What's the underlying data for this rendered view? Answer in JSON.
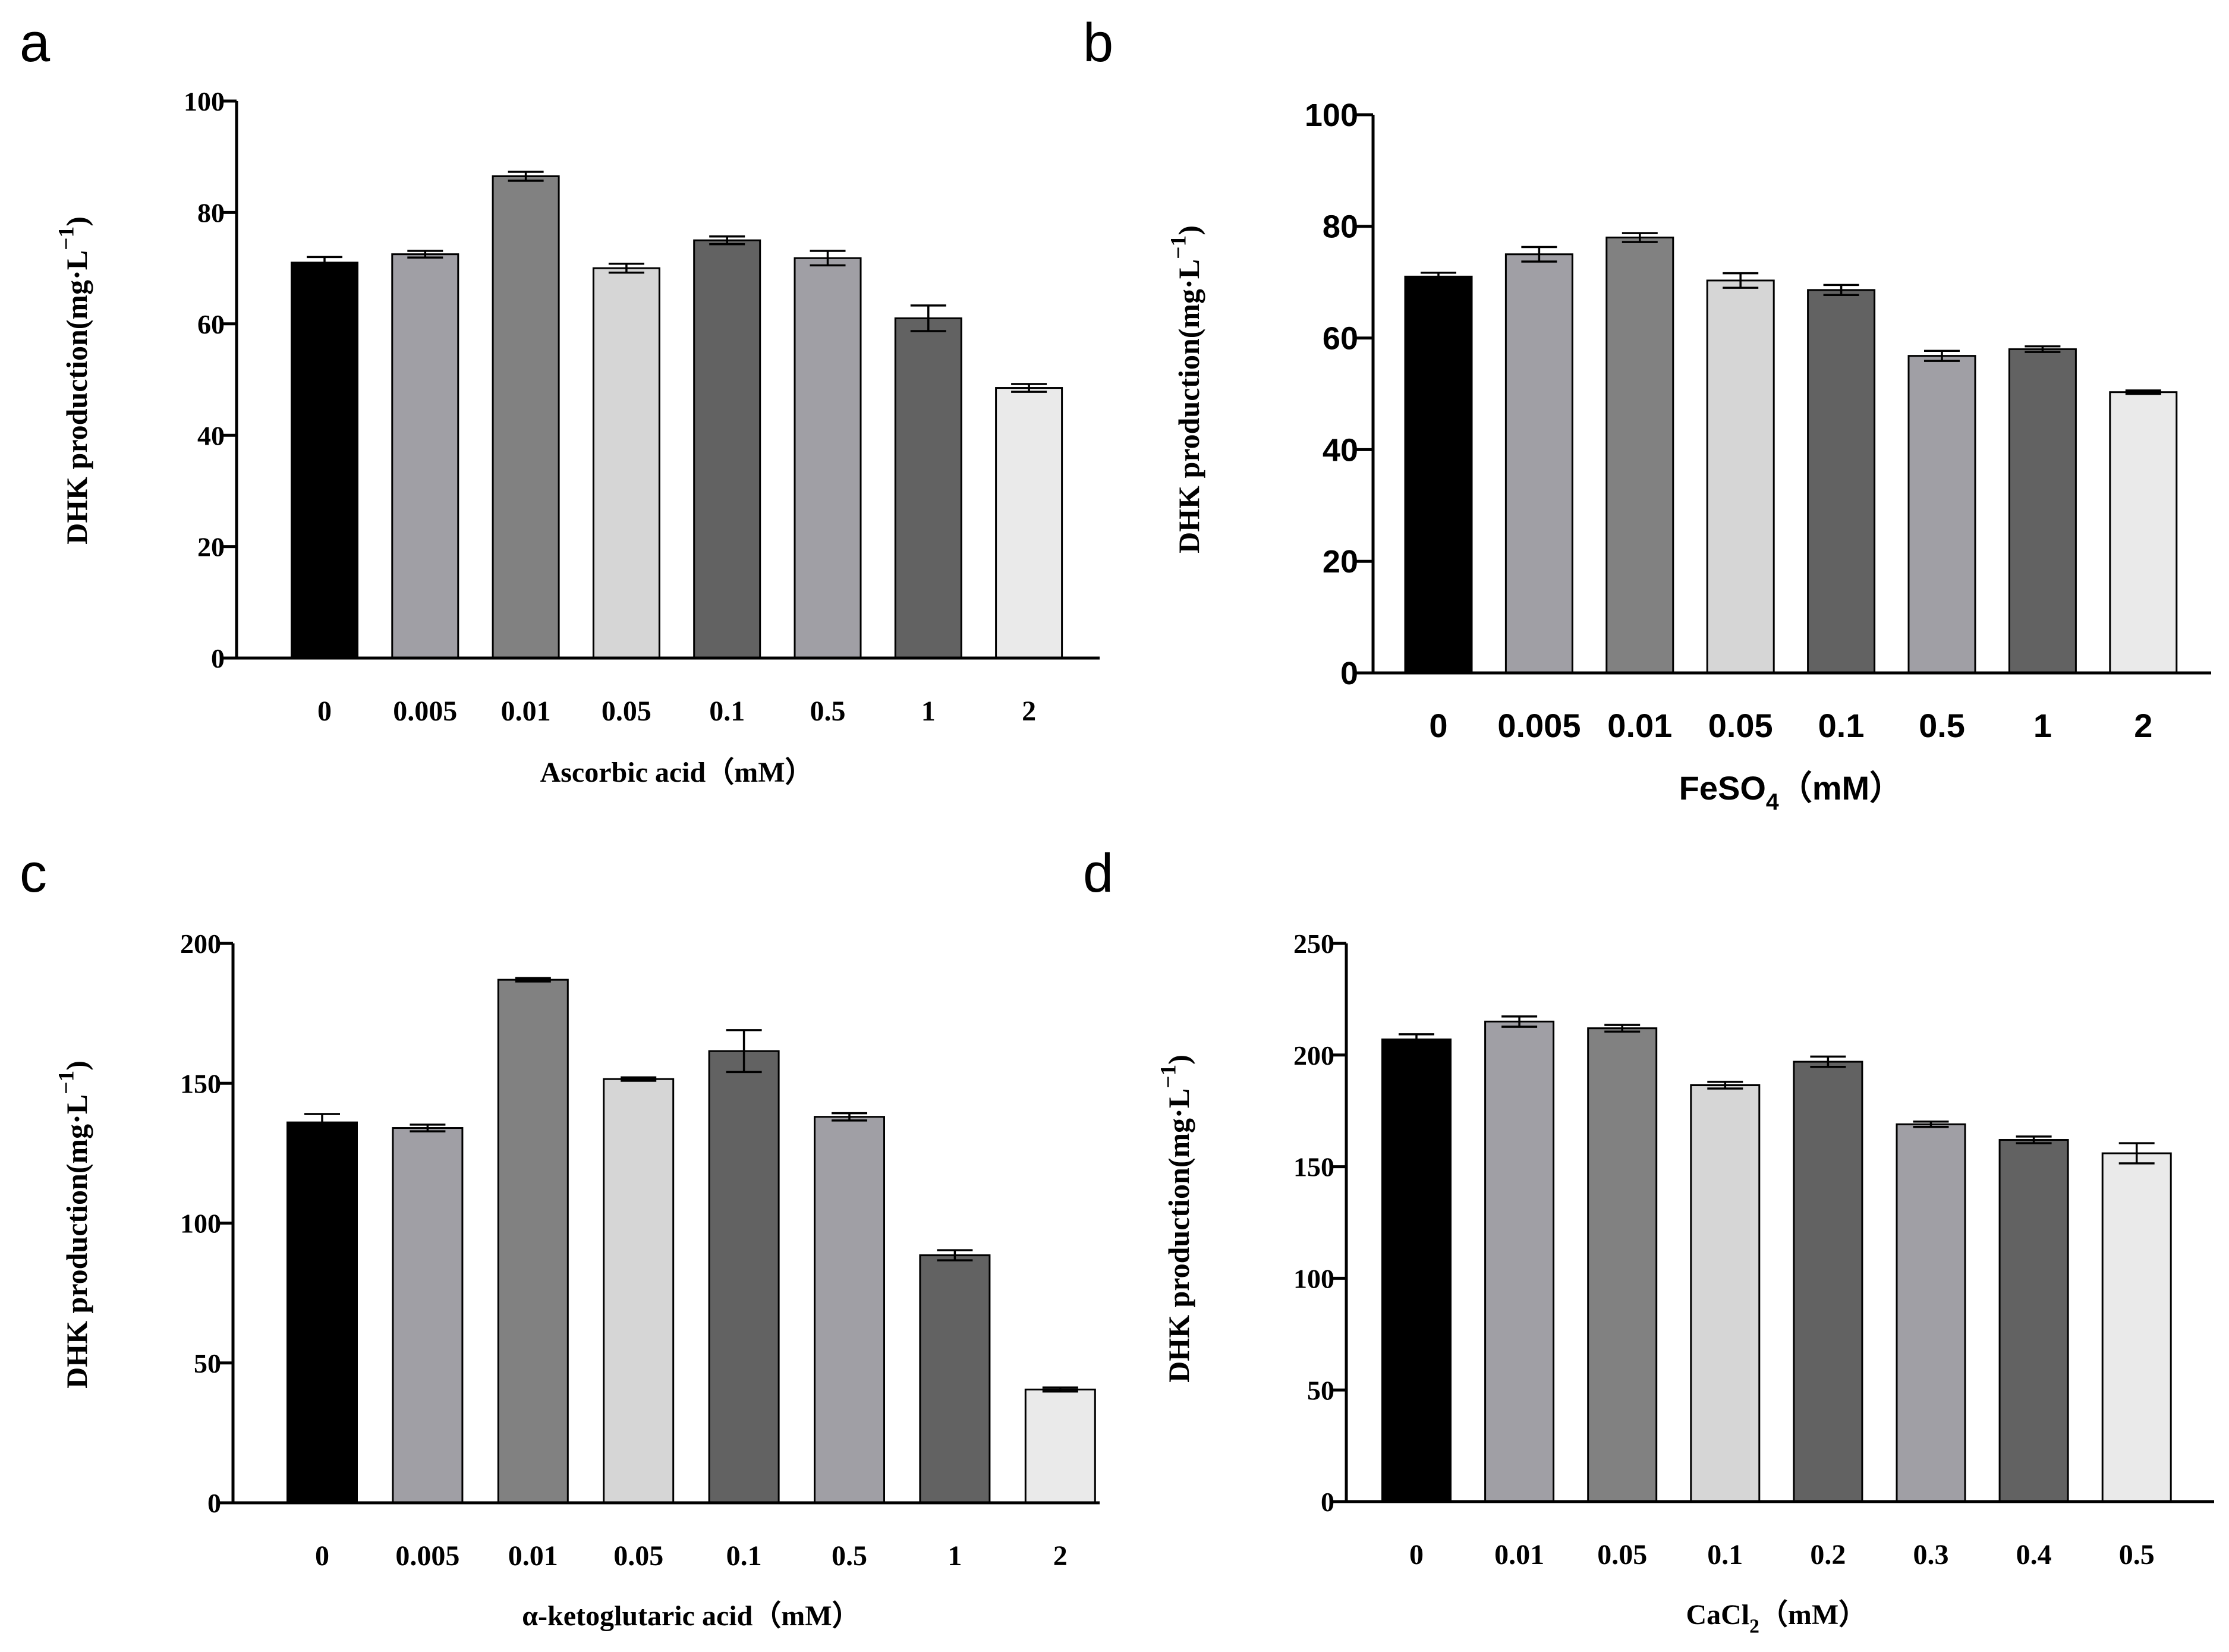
{
  "figure": {
    "bar_colors": [
      "#000000",
      "#a09fa5",
      "#818181",
      "#d6d6d6",
      "#626262",
      "#a09fa5",
      "#626262",
      "#eaeaea"
    ],
    "line_color": "#000000"
  },
  "chart_data": [
    {
      "panel_label": "a",
      "type": "bar",
      "font": "serif",
      "categories": [
        "0",
        "0.005",
        "0.01",
        "0.05",
        "0.1",
        "0.5",
        "1",
        "2"
      ],
      "values": [
        71,
        72.5,
        86.5,
        70,
        75,
        71.8,
        61,
        48.5
      ],
      "errors": [
        1,
        0.6,
        0.8,
        0.8,
        0.7,
        1.3,
        2.3,
        0.7
      ],
      "ylim": [
        0,
        100
      ],
      "yticks": [
        "0",
        "20",
        "40",
        "60",
        "80",
        "100"
      ],
      "ytick_values": [
        0,
        20,
        40,
        60,
        80,
        100
      ],
      "xlabel": "Ascorbic acid（mM）",
      "ylabel": "DHK production(mg·L",
      "ylabel_sup": "−1",
      "ylabel_end": ")"
    },
    {
      "panel_label": "b",
      "type": "bar",
      "font": "sans",
      "categories": [
        "0",
        "0.005",
        "0.01",
        "0.05",
        "0.1",
        "0.5",
        "1",
        "2"
      ],
      "values": [
        71,
        75,
        78,
        70.3,
        68.6,
        56.8,
        58,
        50.3
      ],
      "errors": [
        0.7,
        1.3,
        0.8,
        1.3,
        0.9,
        0.9,
        0.5,
        0.3
      ],
      "ylim": [
        0,
        100
      ],
      "yticks": [
        "0",
        "20",
        "40",
        "60",
        "80",
        "100"
      ],
      "ytick_values": [
        0,
        20,
        40,
        60,
        80,
        100
      ],
      "xlabel": "FeSO",
      "xlabel_sub": "4",
      "xlabel_end": "（mM）",
      "ylabel": "DHK production(mg·L",
      "ylabel_sup": "−1",
      "ylabel_end": ")"
    },
    {
      "panel_label": "c",
      "type": "bar",
      "font": "serif",
      "categories": [
        "0",
        "0.005",
        "0.01",
        "0.05",
        "0.1",
        "0.5",
        "1",
        "2"
      ],
      "values": [
        136,
        134,
        187,
        151.5,
        161.5,
        138,
        88.5,
        40.5
      ],
      "errors": [
        3,
        1.2,
        0.6,
        0.6,
        7.5,
        1.3,
        1.8,
        0.7
      ],
      "ylim": [
        0,
        200
      ],
      "yticks": [
        "0",
        "50",
        "100",
        "150",
        "200"
      ],
      "ytick_values": [
        0,
        50,
        100,
        150,
        200
      ],
      "xlabel": "α-ketoglutaric acid（mM）",
      "ylabel": "DHK production(mg·L",
      "ylabel_sup": "−1",
      "ylabel_end": ")"
    },
    {
      "panel_label": "d",
      "type": "bar",
      "font": "serif",
      "categories": [
        "0",
        "0.01",
        "0.05",
        "0.1",
        "0.2",
        "0.3",
        "0.4",
        "0.5"
      ],
      "values": [
        207,
        215,
        212,
        186.5,
        197,
        169,
        162,
        156
      ],
      "errors": [
        2.3,
        2.3,
        1.5,
        1.5,
        2.3,
        1.2,
        1.5,
        4.5
      ],
      "ylim": [
        0,
        250
      ],
      "yticks": [
        "0",
        "50",
        "100",
        "150",
        "200",
        "250"
      ],
      "ytick_values": [
        0,
        50,
        100,
        150,
        200,
        250
      ],
      "xlabel": "CaCl",
      "xlabel_sub": "2",
      "xlabel_end": "（mM）",
      "ylabel": "DHK production(mg·L",
      "ylabel_sup": "−1",
      "ylabel_end": ")"
    }
  ]
}
